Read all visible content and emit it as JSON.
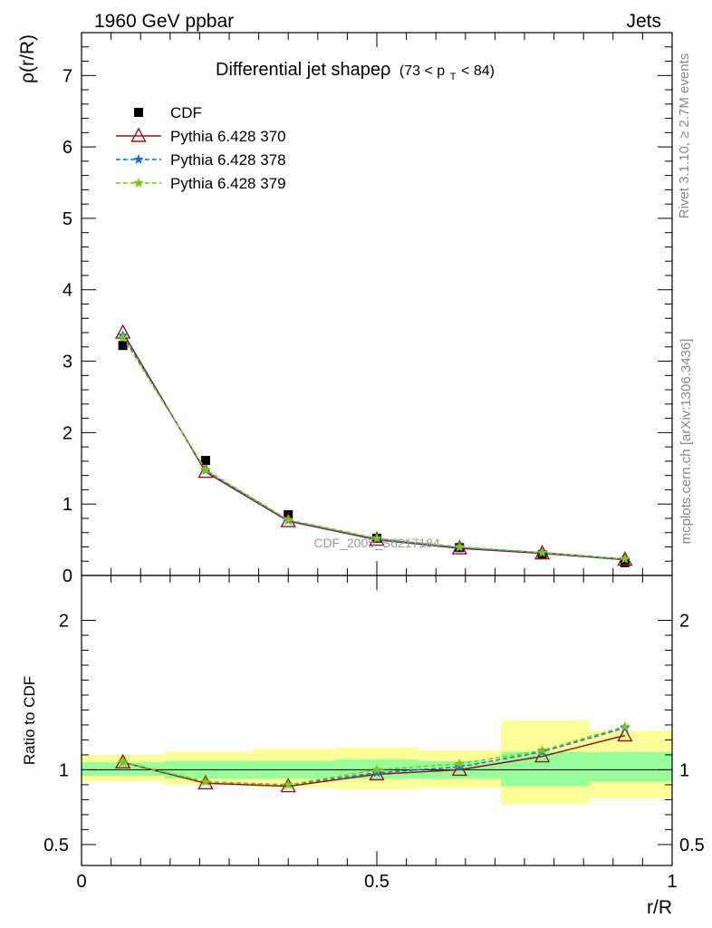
{
  "header": {
    "left_label": "1960 GeV ppbar",
    "right_label": "Jets"
  },
  "side_labels": {
    "rivet": "Rivet 3.1.10, ≥ 2.7M events",
    "mcplots": "mcplots.cern.ch [arXiv:1306.3436]"
  },
  "chart_data": [
    {
      "type": "line",
      "title": "Differential jet shapeρ",
      "title_cut": "(73 < p",
      "title_cut_sub": "T",
      "title_cut_end": " < 84)",
      "xlabel": "r/R",
      "ylabel": "ρ(r/R)",
      "xlim": [
        0,
        1
      ],
      "ylim": [
        0,
        7.6
      ],
      "y_ticks": [
        "0",
        "1",
        "2",
        "3",
        "4",
        "5",
        "6",
        "7"
      ],
      "watermark": "CDF_2005_S6217184",
      "legend_position": "top-left",
      "x": [
        0.07,
        0.21,
        0.35,
        0.5,
        0.64,
        0.78,
        0.92
      ],
      "series": [
        {
          "name": "CDF",
          "color": "#000000",
          "marker": "square",
          "values": [
            3.22,
            1.61,
            0.85,
            0.52,
            0.39,
            0.29,
            0.18
          ]
        },
        {
          "name": "Pythia 6.428 370",
          "color": "#8b1a1a",
          "marker": "triangle",
          "line": "solid",
          "values": [
            3.4,
            1.45,
            0.76,
            0.5,
            0.38,
            0.31,
            0.22
          ]
        },
        {
          "name": "Pythia 6.428 378",
          "color": "#1f6fd1",
          "marker": "star",
          "line": "dashed",
          "values": [
            3.36,
            1.47,
            0.77,
            0.51,
            0.39,
            0.32,
            0.23
          ]
        },
        {
          "name": "Pythia 6.428 379",
          "color": "#7dc41f",
          "marker": "star",
          "line": "dashed",
          "values": [
            3.33,
            1.48,
            0.78,
            0.52,
            0.4,
            0.32,
            0.23
          ]
        }
      ]
    },
    {
      "type": "line",
      "xlabel": "r/R",
      "ylabel": "Ratio to CDF",
      "xlim": [
        0,
        1
      ],
      "ylim": [
        0.36,
        2.3
      ],
      "y_ticks": [
        "0.5",
        "1",
        "2"
      ],
      "x_ticks": [
        "0",
        "0.5",
        "1"
      ],
      "x": [
        0.07,
        0.21,
        0.35,
        0.5,
        0.64,
        0.78,
        0.92
      ],
      "bands": {
        "bin_edges": [
          0.0,
          0.14,
          0.29,
          0.43,
          0.57,
          0.71,
          0.86,
          1.0
        ],
        "yellow_lo": [
          0.92,
          0.9,
          0.88,
          0.87,
          0.88,
          0.77,
          0.81
        ],
        "yellow_hi": [
          1.1,
          1.12,
          1.14,
          1.15,
          1.13,
          1.33,
          1.26
        ],
        "green_lo": [
          0.96,
          0.94,
          0.94,
          0.94,
          0.94,
          0.89,
          0.92
        ],
        "green_hi": [
          1.05,
          1.06,
          1.06,
          1.07,
          1.06,
          1.12,
          1.12
        ]
      },
      "series": [
        {
          "name": "Pythia 6.428 370",
          "color": "#8b1a1a",
          "marker": "triangle",
          "line": "solid",
          "values": [
            1.05,
            0.91,
            0.89,
            0.97,
            1.0,
            1.09,
            1.23
          ]
        },
        {
          "name": "Pythia 6.428 378",
          "color": "#1f6fd1",
          "marker": "star",
          "line": "dashed",
          "values": [
            1.05,
            0.92,
            0.9,
            0.98,
            1.02,
            1.12,
            1.28
          ]
        },
        {
          "name": "Pythia 6.428 379",
          "color": "#7dc41f",
          "marker": "star",
          "line": "dashed",
          "values": [
            1.05,
            0.92,
            0.9,
            1.0,
            1.04,
            1.13,
            1.29
          ]
        }
      ]
    }
  ]
}
